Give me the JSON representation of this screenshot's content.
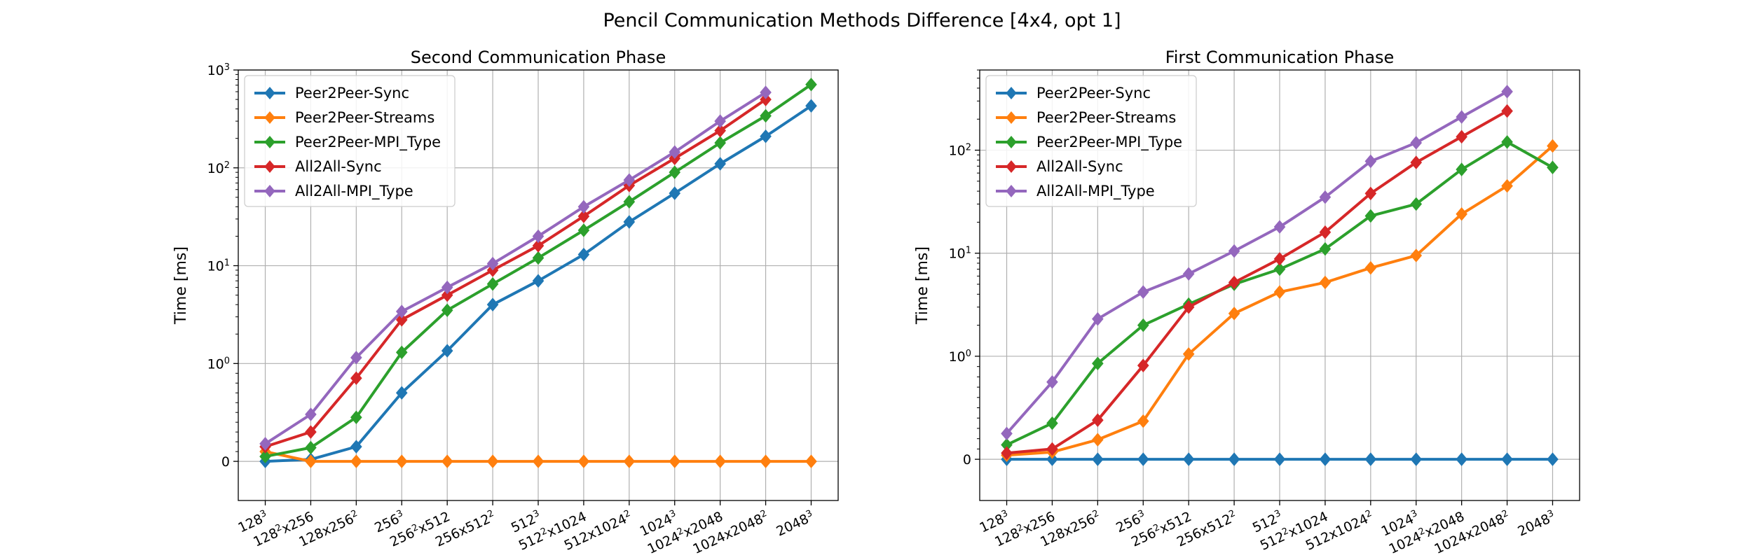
{
  "figure": {
    "title": "Pencil Communication Methods Difference [4x4, opt 1]"
  },
  "colors": {
    "Peer2Peer-Sync": "#1f77b4",
    "Peer2Peer-Streams": "#ff7f0e",
    "Peer2Peer-MPI_Type": "#2ca02c",
    "All2All-Sync": "#d62728",
    "All2All-MPI_Type": "#9467bd"
  },
  "chart_data": [
    {
      "type": "line",
      "title": "Second Communication Phase",
      "ylabel": "Time [ms]",
      "xlabel": "",
      "yscale": "symlog",
      "ylim": [
        -0.4,
        1000
      ],
      "grid": true,
      "legend": "top-left",
      "categories": [
        "128^3",
        "128^2x256",
        "128x256^2",
        "256^3",
        "256^2x512",
        "256x512^2",
        "512^3",
        "512^2x1024",
        "512x1024^2",
        "1024^3",
        "1024^2x2048",
        "1024x2048^2",
        "2048^3"
      ],
      "y_ticks": [
        "0",
        "10^0",
        "10^1",
        "10^2",
        "10^3"
      ],
      "series": [
        {
          "name": "Peer2Peer-Sync",
          "values": [
            0.0,
            0.02,
            0.15,
            0.7,
            1.35,
            4.0,
            7.0,
            13.0,
            28.0,
            55.0,
            110.0,
            210.0,
            430.0
          ]
        },
        {
          "name": "Peer2Peer-Streams",
          "values": [
            0.1,
            0.0,
            0.0,
            0.0,
            0.0,
            0.0,
            0.0,
            0.0,
            0.0,
            0.0,
            0.0,
            0.0,
            0.0
          ]
        },
        {
          "name": "Peer2Peer-MPI_Type",
          "values": [
            0.05,
            0.14,
            0.45,
            1.3,
            3.5,
            6.5,
            12.0,
            23.0,
            45.0,
            90.0,
            180.0,
            340.0,
            710.0
          ]
        },
        {
          "name": "All2All-Sync",
          "values": [
            0.15,
            0.3,
            0.85,
            2.8,
            5.0,
            9.0,
            16.0,
            32.0,
            66.0,
            125.0,
            240.0,
            500.0,
            null
          ]
        },
        {
          "name": "All2All-MPI_Type",
          "values": [
            0.18,
            0.48,
            1.15,
            3.4,
            6.0,
            10.5,
            20.0,
            40.0,
            75.0,
            145.0,
            300.0,
            590.0,
            null
          ]
        }
      ]
    },
    {
      "type": "line",
      "title": "First Communication Phase",
      "ylabel": "Time [ms]",
      "xlabel": "",
      "yscale": "symlog",
      "ylim": [
        -0.4,
        600
      ],
      "grid": true,
      "legend": "top-left",
      "categories": [
        "128^3",
        "128^2x256",
        "128x256^2",
        "256^3",
        "256^2x512",
        "256x512^2",
        "512^3",
        "512^2x1024",
        "512x1024^2",
        "1024^3",
        "1024^2x2048",
        "1024x2048^2",
        "2048^3"
      ],
      "y_ticks": [
        "0",
        "10^0",
        "10^1",
        "10^2"
      ],
      "series": [
        {
          "name": "Peer2Peer-Sync",
          "values": [
            0.0,
            0.0,
            0.0,
            0.0,
            0.0,
            0.0,
            0.0,
            0.0,
            0.0,
            0.0,
            0.0,
            0.0,
            0.0
          ]
        },
        {
          "name": "Peer2Peer-Streams",
          "values": [
            0.04,
            0.07,
            0.19,
            0.37,
            1.05,
            2.6,
            4.2,
            5.2,
            7.2,
            9.5,
            24.0,
            45.0,
            110.0
          ]
        },
        {
          "name": "Peer2Peer-MPI_Type",
          "values": [
            0.14,
            0.35,
            0.93,
            2.0,
            3.2,
            5.0,
            7.0,
            11.0,
            23.0,
            30.0,
            65.0,
            120.0,
            68.0
          ]
        },
        {
          "name": "All2All-Sync",
          "values": [
            0.06,
            0.1,
            0.38,
            0.91,
            3.0,
            5.2,
            8.8,
            16.0,
            38.0,
            76.0,
            135.0,
            240.0,
            null
          ]
        },
        {
          "name": "All2All-MPI_Type",
          "values": [
            0.25,
            0.75,
            2.3,
            4.2,
            6.3,
            10.5,
            18.0,
            35.0,
            78.0,
            118.0,
            210.0,
            370.0,
            null
          ]
        }
      ]
    }
  ]
}
